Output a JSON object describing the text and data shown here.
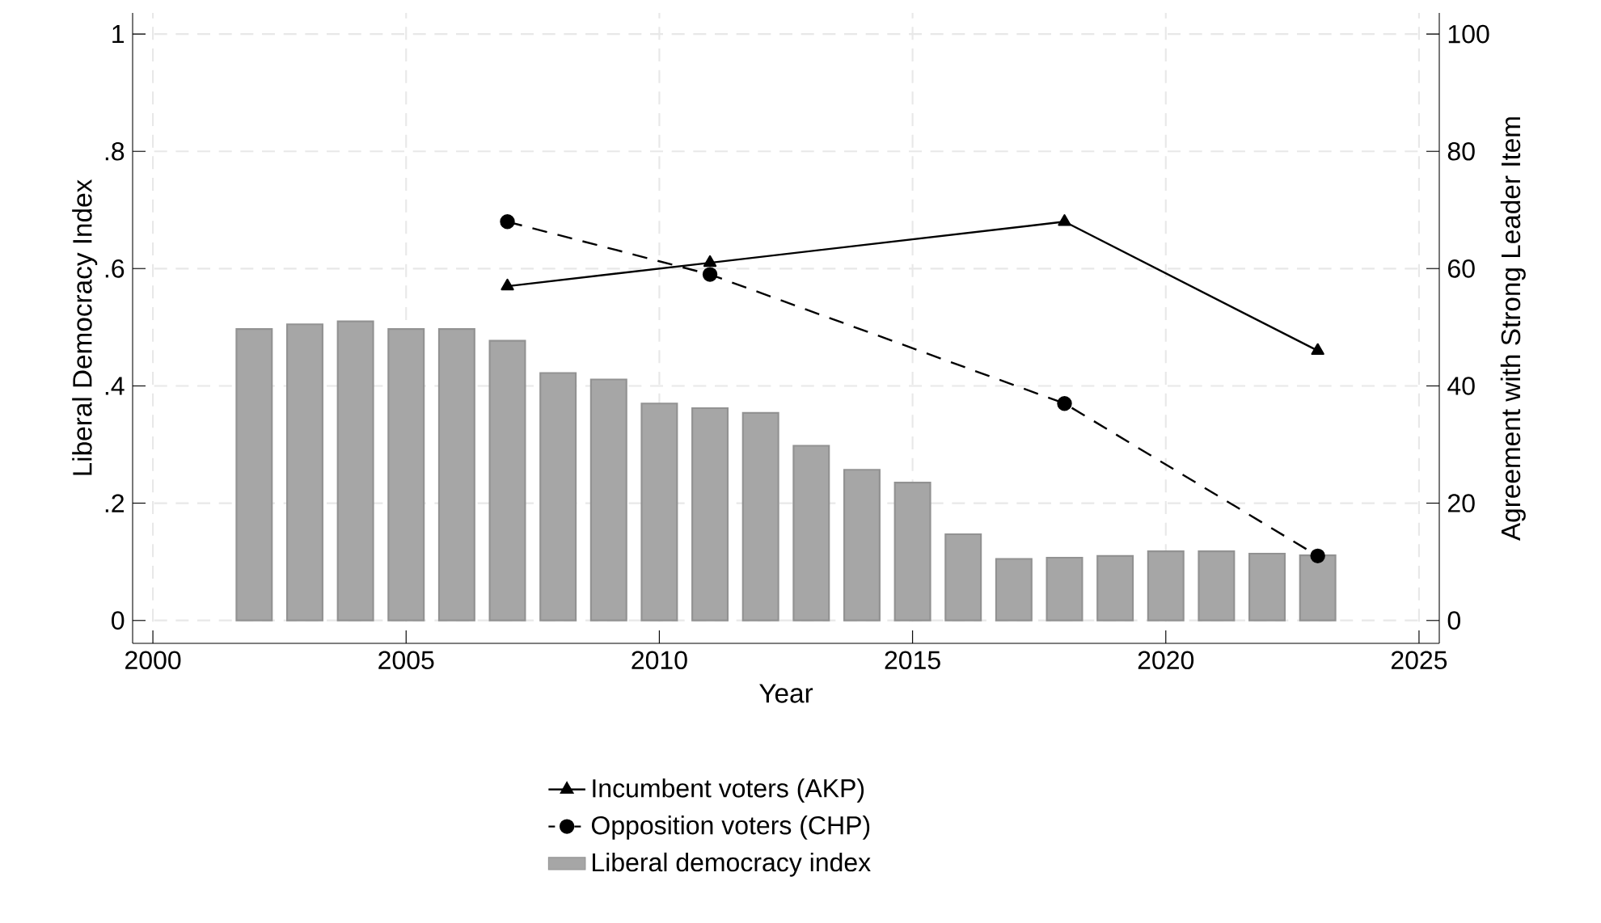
{
  "chart_data": {
    "type": "bar",
    "xlabel": "Year",
    "ylabel": "Liberal Democracy Index",
    "y2label": "Agreement with Strong Leader Item",
    "x": [
      2002,
      2003,
      2004,
      2005,
      2006,
      2007,
      2008,
      2009,
      2010,
      2011,
      2012,
      2013,
      2014,
      2015,
      2016,
      2017,
      2018,
      2019,
      2020,
      2021,
      2022,
      2023
    ],
    "series": [
      {
        "name": "Incumbent voters (AKP)",
        "type": "line",
        "axis": "y2",
        "color": "#000000",
        "marker": "triangle",
        "line_style": "solid",
        "x": [
          2007,
          2011,
          2018,
          2023
        ],
        "values": [
          57,
          61,
          68,
          46
        ]
      },
      {
        "name": "Opposition voters (CHP)",
        "type": "line",
        "axis": "y2",
        "color": "#000000",
        "marker": "circle",
        "line_style": "dashed",
        "x": [
          2007,
          2011,
          2018,
          2023
        ],
        "values": [
          68,
          59,
          37,
          11
        ]
      },
      {
        "name": "Liberal democracy index",
        "color": "#a6a6a6",
        "values": [
          0.497,
          0.505,
          0.51,
          0.497,
          0.497,
          0.477,
          0.422,
          0.411,
          0.37,
          0.362,
          0.354,
          0.298,
          0.257,
          0.235,
          0.147,
          0.105,
          0.107,
          0.11,
          0.118,
          0.118,
          0.114,
          0.111
        ]
      }
    ],
    "xlim": [
      1999.6,
      2025.4
    ],
    "xticks": [
      2000,
      2005,
      2010,
      2015,
      2020,
      2025
    ],
    "ylim": [
      -0.039,
      1.036
    ],
    "yticks": [
      0,
      {
        "value": 0.2,
        "label": ".2"
      },
      {
        "value": 0.4,
        "label": ".4"
      },
      {
        "value": 0.6,
        "label": ".6"
      },
      {
        "value": 0.8,
        "label": ".8"
      },
      1
    ],
    "y2lim": [
      -3.9,
      103.6
    ],
    "y2ticks": [
      0,
      20,
      40,
      60,
      80,
      100
    ],
    "grid": true,
    "legend": "bottom"
  }
}
